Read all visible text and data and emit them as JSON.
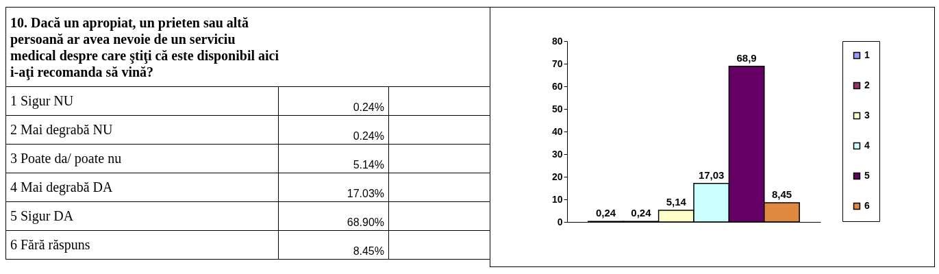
{
  "chart_data": [
    {
      "type": "other",
      "title": "10. Dacă un apropiat, un prieten sau altă persoană ar avea nevoie de un serviciu medical despre care ştiţi că este disponibil aici i-aţi recomanda să vină?",
      "annotations": [
        "1 Sigur NU",
        "0.24%",
        "2 Mai degrabă NU",
        "0.24%",
        "3 Poate da/ poate nu",
        "5.14%",
        "4 Mai degrabă DA",
        "17.03%",
        "5 Sigur DA",
        "68.90%",
        "6 Fără răspuns",
        "8.45%"
      ]
    },
    {
      "type": "bar",
      "categories": [
        null
      ],
      "ylim": [
        0,
        80
      ],
      "yticks": [
        0,
        10,
        20,
        30,
        40,
        50,
        60,
        70,
        80
      ],
      "grid": false,
      "legend": "right",
      "series": [
        {
          "name": "1",
          "color": "#9999ff",
          "values": [
            0.24
          ],
          "value_labels": [
            "0,24"
          ]
        },
        {
          "name": "2",
          "color": "#993366",
          "values": [
            0.24
          ],
          "value_labels": [
            "0,24"
          ]
        },
        {
          "name": "3",
          "color": "#ffffcc",
          "values": [
            5.14
          ],
          "value_labels": [
            "5,14"
          ]
        },
        {
          "name": "4",
          "color": "#ccffff",
          "values": [
            17.03
          ],
          "value_labels": [
            "17,03"
          ]
        },
        {
          "name": "5",
          "color": "#660066",
          "values": [
            68.9
          ],
          "value_labels": [
            "68,9"
          ]
        },
        {
          "name": "6",
          "color": "#de8840",
          "values": [
            8.45
          ],
          "value_labels": [
            "8,45"
          ]
        }
      ]
    }
  ]
}
